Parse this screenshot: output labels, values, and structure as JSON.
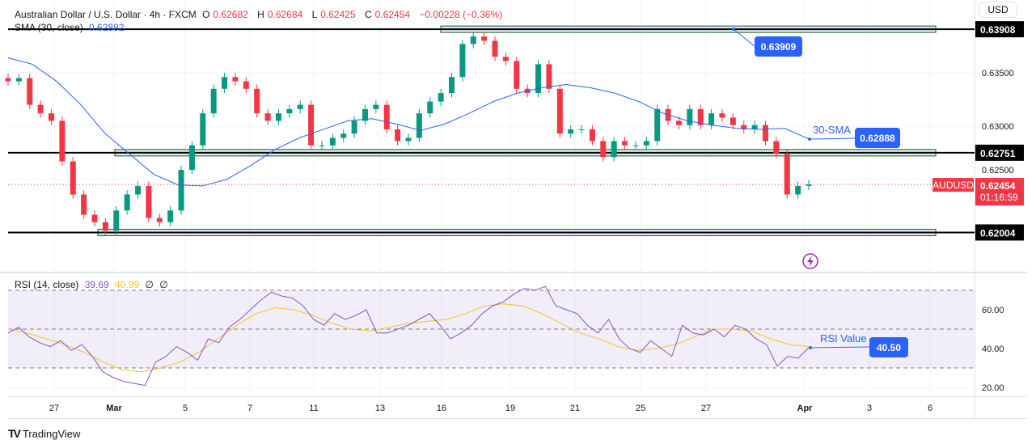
{
  "header": {
    "symbol_title": "Australian Dollar / U.S. Dollar · 4h · FXCM",
    "open_label": "O",
    "open": "0.62682",
    "high_label": "H",
    "high": "0.62684",
    "low_label": "L",
    "low": "0.62425",
    "close_label": "C",
    "close": "0.62454",
    "change": "−0.00228 (−0.36%)",
    "sma_label": "SMA (30, close)",
    "sma_value": "0.62882"
  },
  "currency": "USD",
  "price_axis": {
    "ticks": [
      "0.63500",
      "0.63000",
      "0.62500"
    ],
    "tick_values": [
      0.635,
      0.63,
      0.625
    ],
    "level_labels": [
      "0.63908",
      "0.62751",
      "0.62004"
    ],
    "level_values": [
      0.63908,
      0.62751,
      0.62004
    ],
    "symbol_tag": "AUDUSD",
    "last_price": "0.62454",
    "countdown": "01:16:59"
  },
  "annotations": {
    "top_level_box": "0.63909",
    "sma_text": "30-SMA",
    "sma_box": "0.62888",
    "rsi_text": "RSI Value",
    "rsi_box": "40.50"
  },
  "rsi_header": {
    "label": "RSI (14, close)",
    "rsi": "39.69",
    "ma": "40.99",
    "x1": "∅",
    "x2": "∅"
  },
  "rsi_axis": {
    "ticks": [
      "60.00",
      "40.00",
      "20.00"
    ],
    "tick_values": [
      60,
      40,
      20
    ],
    "bands": [
      70,
      50,
      30
    ]
  },
  "time_axis": {
    "labels": [
      "27",
      "Mar",
      "5",
      "7",
      "11",
      "13",
      "16",
      "19",
      "21",
      "25",
      "27",
      "Apr",
      "3",
      "6"
    ]
  },
  "colors": {
    "up": "#089981",
    "down": "#f23645",
    "sma": "#2962ff",
    "rsi": "#7e57c2",
    "rsi_ma": "#f7c51c",
    "annotation": "#2962ff"
  },
  "footer": {
    "brand": "TradingView"
  },
  "chart_data": {
    "type": "candlestick",
    "series": [
      {
        "name": "AUDUSD",
        "closes": [
          0.6342,
          0.6345,
          0.632,
          0.6312,
          0.6305,
          0.6267,
          0.6236,
          0.6217,
          0.621,
          0.6202,
          0.6221,
          0.6236,
          0.6244,
          0.6214,
          0.621,
          0.6221,
          0.6259,
          0.6282,
          0.6312,
          0.6335,
          0.6346,
          0.6342,
          0.6335,
          0.6312,
          0.6305,
          0.6312,
          0.6316,
          0.632,
          0.6282,
          0.6282,
          0.6289,
          0.6293,
          0.6305,
          0.6316,
          0.632,
          0.6297,
          0.6286,
          0.6289,
          0.6312,
          0.6323,
          0.6331,
          0.6346,
          0.6377,
          0.6384,
          0.638,
          0.6365,
          0.6361,
          0.6335,
          0.6331,
          0.6358,
          0.6335,
          0.6293,
          0.6297,
          0.6297,
          0.6286,
          0.6271,
          0.6286,
          0.6282,
          0.6282,
          0.6286,
          0.6316,
          0.6305,
          0.6301,
          0.6316,
          0.6301,
          0.6312,
          0.6308,
          0.6301,
          0.6297,
          0.6301,
          0.6286,
          0.6274,
          0.6236,
          0.6244,
          0.62454
        ]
      },
      {
        "name": "SMA (30, close)",
        "values": [
          0.6364,
          0.6358,
          0.6342,
          0.632,
          0.6293,
          0.6274,
          0.6255,
          0.6245,
          0.6244,
          0.625,
          0.6263,
          0.6278,
          0.6289,
          0.6297,
          0.6305,
          0.6307,
          0.6302,
          0.6296,
          0.6302,
          0.6312,
          0.6323,
          0.6331,
          0.6336,
          0.6339,
          0.6336,
          0.6331,
          0.6323,
          0.6312,
          0.6305,
          0.6301,
          0.6298,
          0.6297,
          0.6298,
          0.6288
        ]
      },
      {
        "name": "RSI (14, close)",
        "values": [
          48,
          51,
          46,
          43,
          41,
          44,
          39,
          42,
          36,
          28,
          25,
          23,
          22,
          21,
          33,
          36,
          41,
          38,
          34,
          45,
          43,
          51,
          55,
          60,
          65,
          69,
          67,
          66,
          62,
          55,
          52,
          58,
          55,
          57,
          60,
          48,
          48,
          50,
          52,
          55,
          58,
          52,
          45,
          48,
          52,
          58,
          62,
          64,
          68,
          71,
          70,
          72,
          62,
          60,
          58,
          52,
          48,
          55,
          45,
          40,
          38,
          44,
          40,
          36,
          52,
          48,
          47,
          50,
          46,
          52,
          50,
          45,
          42,
          31,
          36,
          35,
          40.5
        ]
      },
      {
        "name": "RSI MA",
        "values": [
          50,
          48,
          45,
          42,
          38,
          33,
          29,
          28,
          30,
          33,
          38,
          45,
          52,
          58,
          61,
          60,
          57,
          53,
          50,
          49,
          51,
          53,
          54,
          55,
          58,
          62,
          63,
          62,
          58,
          53,
          48,
          45,
          41,
          39,
          40,
          42,
          46,
          50,
          50,
          49,
          45,
          42,
          41
        ]
      }
    ],
    "levels": [
      0.63908,
      0.62751,
      0.62004
    ],
    "ylim": [
      0.6185,
      0.64
    ],
    "rsi_ylim": [
      15,
      80
    ],
    "grid": true
  }
}
